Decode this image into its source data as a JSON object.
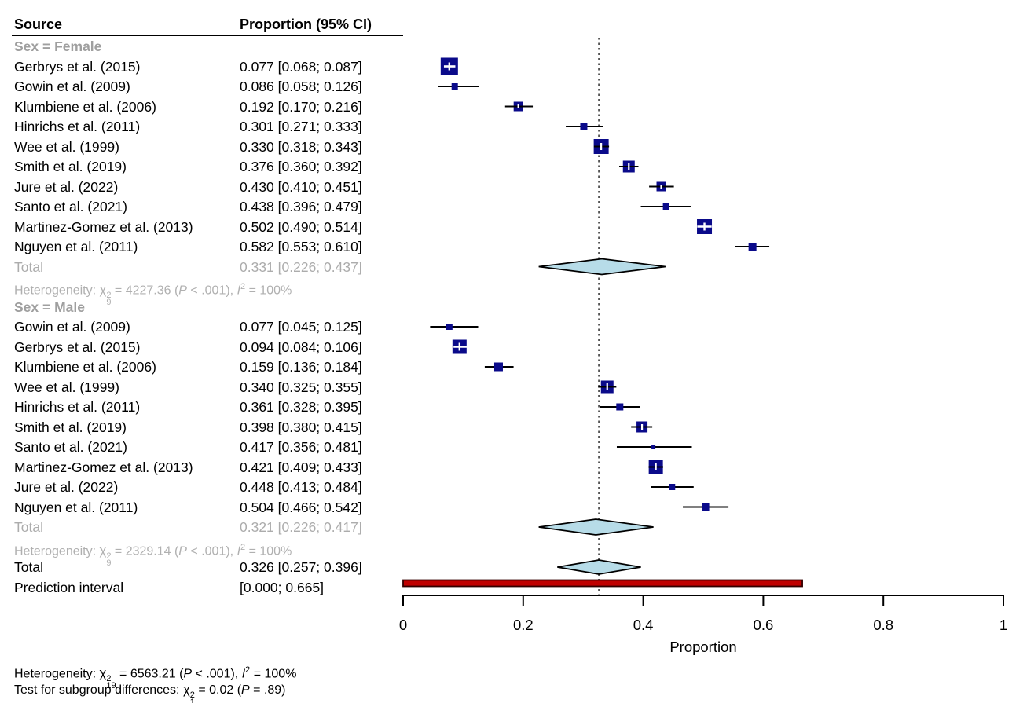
{
  "header": {
    "source": "Source",
    "proportion": "Proportion (95% CI)"
  },
  "chart_data": {
    "type": "scatter",
    "subtype": "forest-plot",
    "title": "",
    "xlabel": "Proportion",
    "xlim": [
      0,
      1
    ],
    "x_tick_labels": [
      "0",
      "0.2",
      "0.4",
      "0.6",
      "0.8",
      "1"
    ],
    "x_tick_values": [
      0,
      0.2,
      0.4,
      0.6,
      0.8,
      1
    ],
    "reference_line": 0.326,
    "groups": [
      {
        "label": "Sex = Female",
        "studies": [
          {
            "name": "Gerbrys et al. (2015)",
            "display": "0.077 [0.068; 0.087]",
            "est": 0.077,
            "lo": 0.068,
            "hi": 0.087,
            "size": 22
          },
          {
            "name": "Gowin et al. (2009)",
            "display": "0.086 [0.058; 0.126]",
            "est": 0.086,
            "lo": 0.058,
            "hi": 0.126,
            "size": 8
          },
          {
            "name": "Klumbiene et al. (2006)",
            "display": "0.192 [0.170; 0.216]",
            "est": 0.192,
            "lo": 0.17,
            "hi": 0.216,
            "size": 12
          },
          {
            "name": "Hinrichs et al. (2011)",
            "display": "0.301 [0.271; 0.333]",
            "est": 0.301,
            "lo": 0.271,
            "hi": 0.333,
            "size": 9
          },
          {
            "name": "Wee et al. (1999)",
            "display": "0.330 [0.318; 0.343]",
            "est": 0.33,
            "lo": 0.318,
            "hi": 0.343,
            "size": 19
          },
          {
            "name": "Smith et al. (2019)",
            "display": "0.376 [0.360; 0.392]",
            "est": 0.376,
            "lo": 0.36,
            "hi": 0.392,
            "size": 15
          },
          {
            "name": "Jure et al. (2022)",
            "display": "0.430 [0.410; 0.451]",
            "est": 0.43,
            "lo": 0.41,
            "hi": 0.451,
            "size": 12
          },
          {
            "name": "Santo et al. (2021)",
            "display": "0.438 [0.396; 0.479]",
            "est": 0.438,
            "lo": 0.396,
            "hi": 0.479,
            "size": 8
          },
          {
            "name": "Martinez-Gomez et al. (2013)",
            "display": "0.502 [0.490; 0.514]",
            "est": 0.502,
            "lo": 0.49,
            "hi": 0.514,
            "size": 19
          },
          {
            "name": "Nguyen et al. (2011)",
            "display": "0.582 [0.553; 0.610]",
            "est": 0.582,
            "lo": 0.553,
            "hi": 0.61,
            "size": 10
          }
        ],
        "total": {
          "label": "Total",
          "display": "0.331 [0.226; 0.437]",
          "est": 0.331,
          "lo": 0.226,
          "hi": 0.437
        },
        "heterogeneity": {
          "pre": "Heterogeneity: ",
          "chi": "χ",
          "sup": "2",
          "df": "9",
          "eq": " = 4227.36 (",
          "p": "P",
          "ptail": " < .001), ",
          "i": "I",
          "isup": "2",
          "tail": " = 100%"
        }
      },
      {
        "label": "Sex = Male",
        "studies": [
          {
            "name": "Gowin et al. (2009)",
            "display": "0.077 [0.045; 0.125]",
            "est": 0.077,
            "lo": 0.045,
            "hi": 0.125,
            "size": 8
          },
          {
            "name": "Gerbrys et al. (2015)",
            "display": "0.094 [0.084; 0.106]",
            "est": 0.094,
            "lo": 0.084,
            "hi": 0.106,
            "size": 18
          },
          {
            "name": "Klumbiene et al. (2006)",
            "display": "0.159 [0.136; 0.184]",
            "est": 0.159,
            "lo": 0.136,
            "hi": 0.184,
            "size": 11
          },
          {
            "name": "Wee et al. (1999)",
            "display": "0.340 [0.325; 0.355]",
            "est": 0.34,
            "lo": 0.325,
            "hi": 0.355,
            "size": 16
          },
          {
            "name": "Hinrichs et al. (2011)",
            "display": "0.361 [0.328; 0.395]",
            "est": 0.361,
            "lo": 0.328,
            "hi": 0.395,
            "size": 9
          },
          {
            "name": "Smith et al. (2019)",
            "display": "0.398 [0.380; 0.415]",
            "est": 0.398,
            "lo": 0.38,
            "hi": 0.415,
            "size": 14
          },
          {
            "name": "Santo et al. (2021)",
            "display": "0.417 [0.356; 0.481]",
            "est": 0.417,
            "lo": 0.356,
            "hi": 0.481,
            "size": 5
          },
          {
            "name": "Martinez-Gomez et al. (2013)",
            "display": "0.421 [0.409; 0.433]",
            "est": 0.421,
            "lo": 0.409,
            "hi": 0.433,
            "size": 18
          },
          {
            "name": "Jure et al. (2022)",
            "display": "0.448 [0.413; 0.484]",
            "est": 0.448,
            "lo": 0.413,
            "hi": 0.484,
            "size": 8
          },
          {
            "name": "Nguyen et al. (2011)",
            "display": "0.504 [0.466; 0.542]",
            "est": 0.504,
            "lo": 0.466,
            "hi": 0.542,
            "size": 9
          }
        ],
        "total": {
          "label": "Total",
          "display": "0.321 [0.226; 0.417]",
          "est": 0.321,
          "lo": 0.226,
          "hi": 0.417
        },
        "heterogeneity": {
          "pre": "Heterogeneity: ",
          "chi": "χ",
          "sup": "2",
          "df": "9",
          "eq": " = 2329.14 (",
          "p": "P",
          "ptail": " < .001), ",
          "i": "I",
          "isup": "2",
          "tail": " = 100%"
        }
      }
    ],
    "overall": {
      "label": "Total",
      "display": "0.326 [0.257; 0.396]",
      "est": 0.326,
      "lo": 0.257,
      "hi": 0.396
    },
    "prediction": {
      "label": "Prediction interval",
      "display": "[0.000; 0.665]",
      "lo": 0.0,
      "hi": 0.665
    }
  },
  "footer": {
    "heterogeneity": {
      "pre": "Heterogeneity: ",
      "chi": "χ",
      "sup": "2",
      "df": "19",
      "eq": " = 6563.21 (",
      "p": "P",
      "ptail": " < .001), ",
      "i": "I",
      "isup": "2",
      "tail": " = 100%"
    },
    "subgroup_test": {
      "pre": "Test for subgroup differences: ",
      "chi": "χ",
      "sup": "2",
      "df": "1",
      "eq": " = 0.02 (",
      "p": "P",
      "ptail": " = .89)"
    }
  },
  "colors": {
    "square": "#0a0a8a",
    "ci_line": "#000000",
    "diamond_fill": "#b7dce8",
    "diamond_border": "#000000",
    "prediction_fill": "#c00000",
    "prediction_border": "#330000",
    "reference_line": "#3a3a3a",
    "gray_text": "#acacac",
    "axis": "#000000"
  }
}
